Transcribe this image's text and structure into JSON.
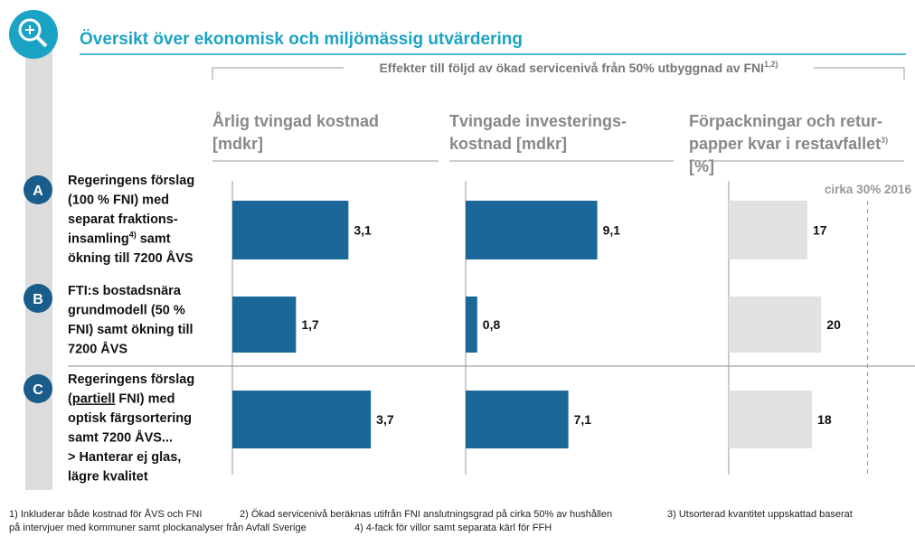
{
  "title": "Översikt över ekonomisk och miljömässig utvärdering",
  "subtitle": "Effekter till följd av ökad servicenivå från 50% utbyggnad av FNI",
  "subtitle_note": "1,2)",
  "scenarios": [
    {
      "letter": "A",
      "lines": [
        [
          "Regeringens förslag"
        ],
        [
          "(100 % FNI) med"
        ],
        [
          "separat fraktions-"
        ],
        [
          "insamling",
          "4)",
          "  samt"
        ],
        [
          "ökning till 7200 ÅVS"
        ]
      ]
    },
    {
      "letter": "B",
      "lines": [
        [
          "FTI:s bostadsnära"
        ],
        [
          "grundmodell (50 %"
        ],
        [
          "FNI) samt ökning till"
        ],
        [
          "7200 ÅVS"
        ]
      ]
    },
    {
      "letter": "C",
      "lines": [
        [
          "Regeringens förslag"
        ],
        [
          "(",
          "partiell",
          " FNI) med"
        ],
        [
          "optisk färgsortering"
        ],
        [
          "samt 7200 ÅVS..."
        ],
        [
          "> Hanterar ej glas,"
        ],
        [
          "lägre kvalitet"
        ]
      ]
    }
  ],
  "chart_data": [
    {
      "type": "bar",
      "orientation": "horizontal",
      "title": [
        "Årlig tvingad kostnad",
        "[mdkr]"
      ],
      "values": [
        3.1,
        1.7,
        3.7
      ],
      "value_labels": [
        "3,1",
        "1,7",
        "3,7"
      ],
      "color": "#1b6799",
      "xlim": [
        0,
        5
      ]
    },
    {
      "type": "bar",
      "orientation": "horizontal",
      "title": [
        "Tvingade investerings-",
        "kostnad [mdkr]"
      ],
      "values": [
        9.1,
        0.8,
        7.1
      ],
      "value_labels": [
        "9,1",
        "0,8",
        "7,1"
      ],
      "color": "#1b6799",
      "xlim": [
        0,
        14
      ]
    },
    {
      "type": "bar",
      "orientation": "horizontal",
      "title": [
        "Förpackningar och retur-",
        "papper kvar i restavfallet",
        "[%]"
      ],
      "title_note": "3)",
      "values": [
        17,
        20,
        18
      ],
      "color": "#e2e2e2",
      "xlim": [
        0,
        35
      ],
      "annotation": {
        "text": "cirka 30% 2016",
        "value": 30
      }
    }
  ],
  "footnote_lines": [
    [
      "1) Inkluderar både kostnad för ÅVS och FNI",
      "2) Ökad servicenivå beräknas utifrån FNI anslutningsgrad på cirka 50% av hushållen",
      "3) Utsorterad kvantitet uppskattad baserat"
    ],
    [
      "på intervjuer med kommuner samt plockanalyser från Avfall Sverige",
      "4) 4-fack för villor samt separata kärl för FFH"
    ]
  ]
}
